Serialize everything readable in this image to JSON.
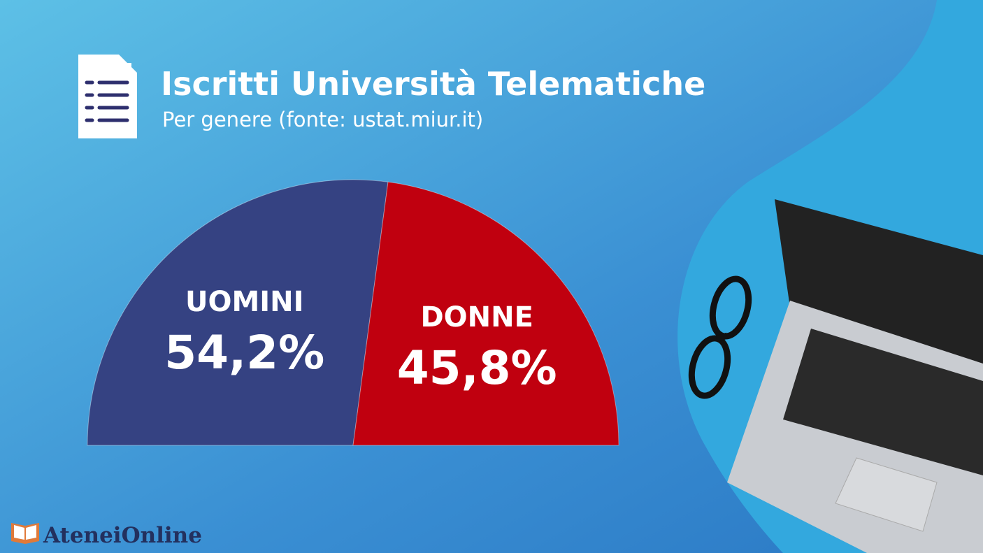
{
  "chart_data": {
    "type": "pie",
    "semicircle": true,
    "title": "Iscritti Università Telematiche",
    "subtitle": "Per genere (fonte: ustat.miur.it)",
    "categories": [
      "UOMINI",
      "DONNE"
    ],
    "values": [
      54.2,
      45.8
    ],
    "value_labels": [
      "54,2%",
      "45,8%"
    ],
    "colors": [
      "#354282",
      "#c0000f"
    ]
  },
  "footer": {
    "brand": "AteneiOnline"
  }
}
